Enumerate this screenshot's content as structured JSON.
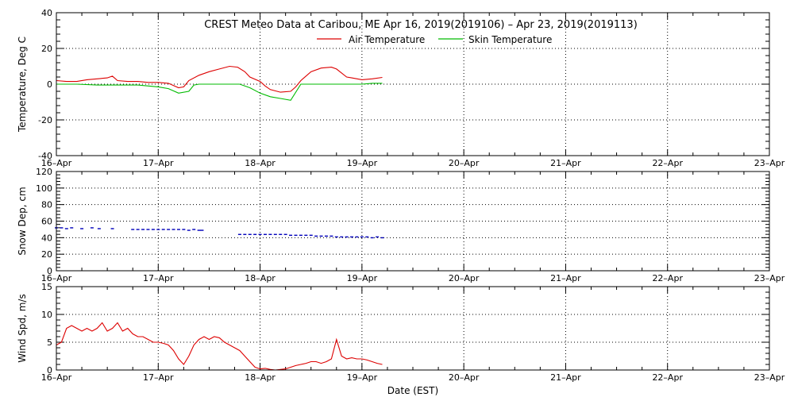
{
  "title": "CREST Meteo Data at Caribou, ME   Apr 16, 2019(2019106) – Apr 23, 2019(2019113)",
  "xlabel": "Date (EST)",
  "chart_data": [
    {
      "type": "line",
      "ylabel": "Temperature, Deg C",
      "ylim": [
        -40,
        40
      ],
      "y_ticks": [
        "40",
        "20",
        "0",
        "-20",
        "-40"
      ],
      "x_ticks": [
        "16–Apr",
        "17–Apr",
        "18–Apr",
        "19–Apr",
        "20–Apr",
        "21–Apr",
        "22–Apr",
        "23–Apr"
      ],
      "xlim": [
        0,
        7
      ],
      "grid": true,
      "legend": "top-center",
      "series": [
        {
          "name": "Air Temperature",
          "color": "#dd0000",
          "x": [
            0.0,
            0.1,
            0.2,
            0.3,
            0.4,
            0.5,
            0.55,
            0.6,
            0.7,
            0.8,
            0.9,
            1.0,
            1.1,
            1.2,
            1.25,
            1.3,
            1.4,
            1.5,
            1.6,
            1.7,
            1.78,
            1.85,
            1.9,
            2.0,
            2.05,
            2.1,
            2.2,
            2.3,
            2.35,
            2.4,
            2.5,
            2.6,
            2.7,
            2.75,
            2.85,
            2.9,
            3.0,
            3.1,
            3.2
          ],
          "y": [
            2.0,
            1.5,
            1.5,
            2.5,
            3.0,
            3.5,
            4.5,
            2.0,
            1.5,
            1.5,
            1.0,
            1.0,
            0.5,
            -2.0,
            -1.5,
            2.0,
            5.0,
            7.0,
            8.5,
            10.0,
            9.5,
            7.0,
            4.0,
            1.5,
            -1.0,
            -3.0,
            -4.5,
            -4.0,
            -1.5,
            2.0,
            7.0,
            9.0,
            9.5,
            8.5,
            4.0,
            3.5,
            2.5,
            3.0,
            3.8
          ]
        },
        {
          "name": "Skin Temperature",
          "color": "#00bb00",
          "x": [
            0.0,
            0.2,
            0.4,
            0.6,
            0.8,
            1.0,
            1.1,
            1.2,
            1.3,
            1.35,
            1.4,
            1.6,
            1.8,
            1.9,
            2.0,
            2.1,
            2.2,
            2.3,
            2.4,
            2.5,
            2.7,
            2.9,
            3.0,
            3.1,
            3.2
          ],
          "y": [
            0.0,
            0.0,
            -0.5,
            -0.5,
            -0.5,
            -1.5,
            -2.5,
            -5.0,
            -4.0,
            -0.5,
            0.0,
            0.0,
            0.0,
            -2.0,
            -5.0,
            -7.0,
            -8.0,
            -9.0,
            0.0,
            0.0,
            0.0,
            0.0,
            0.0,
            0.5,
            0.5
          ]
        }
      ]
    },
    {
      "type": "scatter",
      "ylabel": "Snow Dep, cm",
      "ylim": [
        0,
        120
      ],
      "y_ticks": [
        "120",
        "100",
        "80",
        "60",
        "40",
        "20",
        "0"
      ],
      "x_ticks": [
        "16–Apr",
        "17–Apr",
        "18–Apr",
        "19–Apr",
        "20–Apr",
        "21–Apr",
        "22–Apr",
        "23–Apr"
      ],
      "xlim": [
        0,
        7
      ],
      "grid": true,
      "series": [
        {
          "name": "",
          "color": "#0000bb",
          "x": [
            0.0,
            0.05,
            0.1,
            0.15,
            0.25,
            0.35,
            0.42,
            0.55,
            0.75,
            0.8,
            0.85,
            0.9,
            0.95,
            1.0,
            1.05,
            1.1,
            1.15,
            1.2,
            1.25,
            1.3,
            1.35,
            1.4,
            1.43,
            1.8,
            1.85,
            1.9,
            1.95,
            2.0,
            2.05,
            2.1,
            2.15,
            2.2,
            2.25,
            2.3,
            2.35,
            2.4,
            2.45,
            2.5,
            2.55,
            2.6,
            2.65,
            2.7,
            2.75,
            2.8,
            2.85,
            2.9,
            2.95,
            3.0,
            3.05,
            3.1,
            3.15,
            3.2
          ],
          "y": [
            52,
            52,
            51,
            52,
            51,
            52,
            51,
            51,
            50,
            50,
            50,
            50,
            50,
            50,
            50,
            50,
            50,
            50,
            50,
            49,
            50,
            49,
            49,
            44,
            44,
            44,
            44,
            44,
            44,
            44,
            44,
            44,
            44,
            43,
            43,
            43,
            43,
            43,
            42,
            42,
            42,
            42,
            41,
            41,
            41,
            41,
            41,
            41,
            41,
            40,
            41,
            40
          ]
        }
      ]
    },
    {
      "type": "line",
      "ylabel": "Wind Spd, m/s",
      "ylim": [
        0,
        15
      ],
      "y_ticks": [
        "15",
        "10",
        "5",
        "0"
      ],
      "x_ticks": [
        "16–Apr",
        "17–Apr",
        "18–Apr",
        "19–Apr",
        "20–Apr",
        "21–Apr",
        "22–Apr",
        "23–Apr"
      ],
      "xlim": [
        0,
        7
      ],
      "grid": true,
      "series": [
        {
          "name": "",
          "color": "#dd0000",
          "x": [
            0.0,
            0.05,
            0.1,
            0.15,
            0.2,
            0.25,
            0.3,
            0.35,
            0.4,
            0.45,
            0.5,
            0.55,
            0.6,
            0.65,
            0.7,
            0.75,
            0.8,
            0.85,
            0.9,
            0.95,
            1.0,
            1.05,
            1.1,
            1.15,
            1.2,
            1.25,
            1.3,
            1.35,
            1.4,
            1.45,
            1.5,
            1.55,
            1.6,
            1.65,
            1.7,
            1.75,
            1.8,
            1.85,
            1.9,
            1.95,
            2.0,
            2.05,
            2.1,
            2.15,
            2.2,
            2.25,
            2.3,
            2.35,
            2.4,
            2.45,
            2.5,
            2.55,
            2.6,
            2.65,
            2.7,
            2.75,
            2.8,
            2.85,
            2.9,
            2.95,
            3.0,
            3.05,
            3.1,
            3.15,
            3.2
          ],
          "y": [
            4.5,
            5.0,
            7.5,
            8.0,
            7.5,
            7.0,
            7.5,
            7.0,
            7.5,
            8.5,
            7.0,
            7.5,
            8.5,
            7.0,
            7.5,
            6.5,
            6.0,
            6.0,
            5.5,
            5.0,
            5.0,
            4.8,
            4.5,
            3.5,
            2.0,
            1.0,
            2.5,
            4.5,
            5.5,
            6.0,
            5.5,
            6.0,
            5.8,
            5.0,
            4.5,
            4.0,
            3.5,
            2.5,
            1.5,
            0.5,
            0.2,
            0.3,
            0.1,
            0.0,
            0.1,
            0.2,
            0.5,
            0.8,
            1.0,
            1.2,
            1.5,
            1.5,
            1.2,
            1.5,
            2.0,
            5.5,
            2.5,
            2.0,
            2.2,
            2.0,
            2.0,
            1.8,
            1.5,
            1.2,
            1.0
          ]
        }
      ]
    }
  ]
}
